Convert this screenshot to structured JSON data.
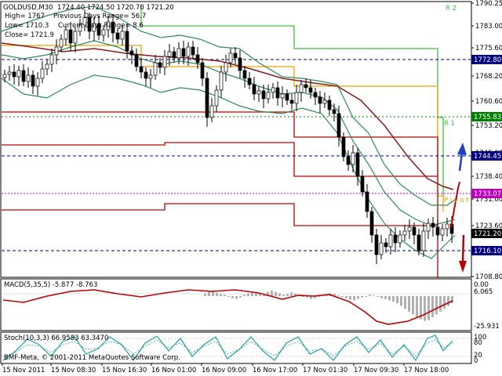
{
  "header": {
    "symbol_line": "GOLDUSD,M30  1724.40 1724.50 1720.70 1721.20",
    "high_line": "High= 1767",
    "prev_range_line": "Previous Days Range= 56.7",
    "low_line": "Low= 1710.3",
    "current_range_line": "Current Days Range= 8.6",
    "close_line": "Close= 1721.9"
  },
  "level_labels": {
    "r2": "R 2",
    "r1": "R 1",
    "pivot": "P i v o t"
  },
  "price_axis": {
    "ticks": [
      "1790.25",
      "1783.00",
      "1775.60",
      "1768.20",
      "1760.60",
      "1753.20",
      "1745.90",
      "1738.40",
      "1731.00",
      "1723.60",
      "1716.10",
      "1708.80"
    ],
    "markers": [
      {
        "text": "1772.80",
        "bg": "#000080"
      },
      {
        "text": "1755.83",
        "bg": "#008000"
      },
      {
        "text": "1744.45",
        "bg": "#000080"
      },
      {
        "text": "1733.07",
        "bg": "#c000c0"
      },
      {
        "text": "1721.20",
        "bg": "#000000"
      },
      {
        "text": "1716.10",
        "bg": "#000080"
      }
    ]
  },
  "macd": {
    "label": "MACD(5,35,5) -5.877 -8.763",
    "ticks": [
      "0.00",
      "6.065",
      "-25.931"
    ]
  },
  "stoch": {
    "label": "Stoch(10,3,3) 66.9583 63.3470",
    "ticks": [
      "100",
      "80",
      "20",
      "0"
    ]
  },
  "time_axis": [
    "15 Nov 2011",
    "15 Nov 08:30",
    "15 Nov 16:30",
    "16 Nov 01:00",
    "16 Nov 09:00",
    "16 Nov 17:00",
    "17 Nov 01:30",
    "17 Nov 09:30",
    "17 Nov 18:00"
  ],
  "watermark": "BMF-Meta, © 2001-2011 MetaQuotes Software Corp.",
  "colors": {
    "candle": "#000000",
    "bollinger": "#2e8b57",
    "ma": "#8b1a1a",
    "level_red": "#c00000",
    "level_orange": "#f0a000",
    "level_green": "#40c040",
    "macd_signal": "#c00000",
    "stoch_main": "#20a0a0",
    "arrow_up": "#2040c0",
    "arrow_down": "#c00000"
  }
}
